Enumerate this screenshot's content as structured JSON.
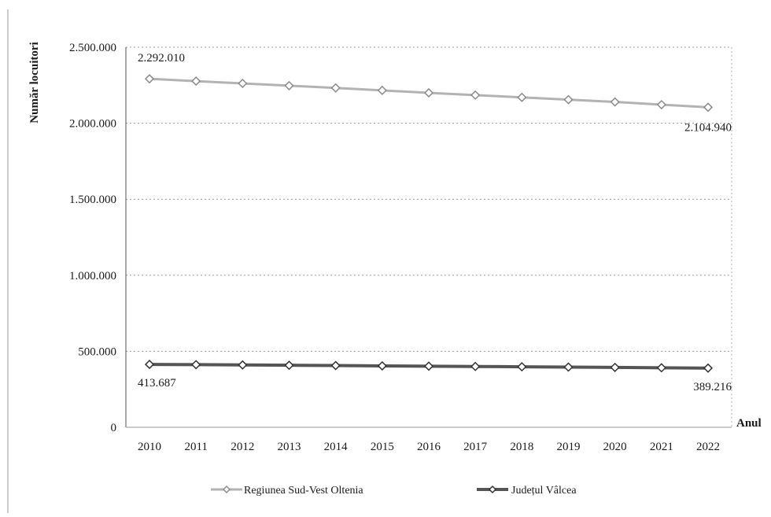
{
  "chart_data": {
    "type": "line",
    "title": "",
    "xlabel": "Anul",
    "ylabel": "Număr locuitori",
    "x": [
      "2010",
      "2011",
      "2012",
      "2013",
      "2014",
      "2015",
      "2016",
      "2017",
      "2018",
      "2019",
      "2020",
      "2021",
      "2022"
    ],
    "y_ticks": [
      "0",
      "500.000",
      "1.000.000",
      "1.500.000",
      "2.000.000",
      "2.500.000"
    ],
    "ylim": [
      0,
      2500000
    ],
    "grid": true,
    "legend_position": "bottom",
    "series": [
      {
        "name": "Regiunea Sud-Vest Oltenia",
        "color": "#b3b3b3",
        "marker": "diamond",
        "values": [
          2292010,
          2277000,
          2262000,
          2247000,
          2232000,
          2216000,
          2200000,
          2185000,
          2170000,
          2155000,
          2140000,
          2122000,
          2104940
        ],
        "labels": [
          {
            "index": 0,
            "text": "2.292.010"
          },
          {
            "index": 12,
            "text": "2.104.940"
          }
        ]
      },
      {
        "name": "Județul Vâlcea",
        "color": "#555555",
        "marker": "diamond",
        "values": [
          413687,
          412000,
          410000,
          408000,
          406000,
          404000,
          402000,
          400000,
          398000,
          396000,
          394000,
          391500,
          389216
        ],
        "labels": [
          {
            "index": 0,
            "text": "413.687"
          },
          {
            "index": 12,
            "text": "389.216"
          }
        ]
      }
    ]
  }
}
